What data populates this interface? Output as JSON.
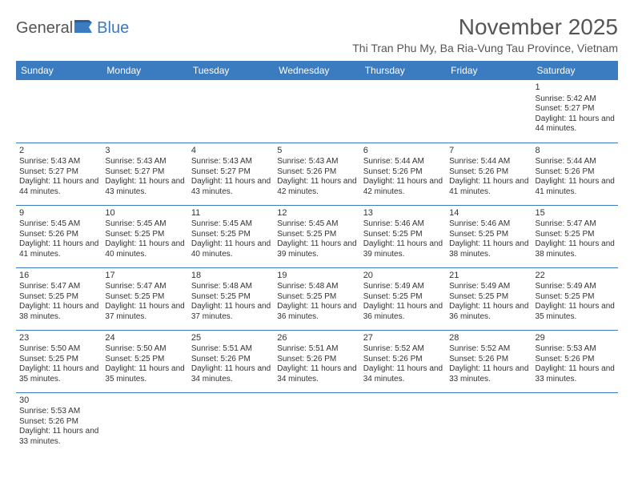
{
  "logo": {
    "general": "General",
    "blue": "Blue"
  },
  "header": {
    "month_title": "November 2025",
    "location": "Thi Tran Phu My, Ba Ria-Vung Tau Province, Vietnam"
  },
  "colors": {
    "header_bg": "#3b7bbf",
    "header_text": "#ffffff",
    "border": "#3b7bbf",
    "text": "#333333",
    "title_text": "#555555"
  },
  "weekdays": [
    "Sunday",
    "Monday",
    "Tuesday",
    "Wednesday",
    "Thursday",
    "Friday",
    "Saturday"
  ],
  "weeks": [
    [
      null,
      null,
      null,
      null,
      null,
      null,
      {
        "day": "1",
        "sunrise": "Sunrise: 5:42 AM",
        "sunset": "Sunset: 5:27 PM",
        "daylight": "Daylight: 11 hours and 44 minutes."
      }
    ],
    [
      {
        "day": "2",
        "sunrise": "Sunrise: 5:43 AM",
        "sunset": "Sunset: 5:27 PM",
        "daylight": "Daylight: 11 hours and 44 minutes."
      },
      {
        "day": "3",
        "sunrise": "Sunrise: 5:43 AM",
        "sunset": "Sunset: 5:27 PM",
        "daylight": "Daylight: 11 hours and 43 minutes."
      },
      {
        "day": "4",
        "sunrise": "Sunrise: 5:43 AM",
        "sunset": "Sunset: 5:27 PM",
        "daylight": "Daylight: 11 hours and 43 minutes."
      },
      {
        "day": "5",
        "sunrise": "Sunrise: 5:43 AM",
        "sunset": "Sunset: 5:26 PM",
        "daylight": "Daylight: 11 hours and 42 minutes."
      },
      {
        "day": "6",
        "sunrise": "Sunrise: 5:44 AM",
        "sunset": "Sunset: 5:26 PM",
        "daylight": "Daylight: 11 hours and 42 minutes."
      },
      {
        "day": "7",
        "sunrise": "Sunrise: 5:44 AM",
        "sunset": "Sunset: 5:26 PM",
        "daylight": "Daylight: 11 hours and 41 minutes."
      },
      {
        "day": "8",
        "sunrise": "Sunrise: 5:44 AM",
        "sunset": "Sunset: 5:26 PM",
        "daylight": "Daylight: 11 hours and 41 minutes."
      }
    ],
    [
      {
        "day": "9",
        "sunrise": "Sunrise: 5:45 AM",
        "sunset": "Sunset: 5:26 PM",
        "daylight": "Daylight: 11 hours and 41 minutes."
      },
      {
        "day": "10",
        "sunrise": "Sunrise: 5:45 AM",
        "sunset": "Sunset: 5:25 PM",
        "daylight": "Daylight: 11 hours and 40 minutes."
      },
      {
        "day": "11",
        "sunrise": "Sunrise: 5:45 AM",
        "sunset": "Sunset: 5:25 PM",
        "daylight": "Daylight: 11 hours and 40 minutes."
      },
      {
        "day": "12",
        "sunrise": "Sunrise: 5:45 AM",
        "sunset": "Sunset: 5:25 PM",
        "daylight": "Daylight: 11 hours and 39 minutes."
      },
      {
        "day": "13",
        "sunrise": "Sunrise: 5:46 AM",
        "sunset": "Sunset: 5:25 PM",
        "daylight": "Daylight: 11 hours and 39 minutes."
      },
      {
        "day": "14",
        "sunrise": "Sunrise: 5:46 AM",
        "sunset": "Sunset: 5:25 PM",
        "daylight": "Daylight: 11 hours and 38 minutes."
      },
      {
        "day": "15",
        "sunrise": "Sunrise: 5:47 AM",
        "sunset": "Sunset: 5:25 PM",
        "daylight": "Daylight: 11 hours and 38 minutes."
      }
    ],
    [
      {
        "day": "16",
        "sunrise": "Sunrise: 5:47 AM",
        "sunset": "Sunset: 5:25 PM",
        "daylight": "Daylight: 11 hours and 38 minutes."
      },
      {
        "day": "17",
        "sunrise": "Sunrise: 5:47 AM",
        "sunset": "Sunset: 5:25 PM",
        "daylight": "Daylight: 11 hours and 37 minutes."
      },
      {
        "day": "18",
        "sunrise": "Sunrise: 5:48 AM",
        "sunset": "Sunset: 5:25 PM",
        "daylight": "Daylight: 11 hours and 37 minutes."
      },
      {
        "day": "19",
        "sunrise": "Sunrise: 5:48 AM",
        "sunset": "Sunset: 5:25 PM",
        "daylight": "Daylight: 11 hours and 36 minutes."
      },
      {
        "day": "20",
        "sunrise": "Sunrise: 5:49 AM",
        "sunset": "Sunset: 5:25 PM",
        "daylight": "Daylight: 11 hours and 36 minutes."
      },
      {
        "day": "21",
        "sunrise": "Sunrise: 5:49 AM",
        "sunset": "Sunset: 5:25 PM",
        "daylight": "Daylight: 11 hours and 36 minutes."
      },
      {
        "day": "22",
        "sunrise": "Sunrise: 5:49 AM",
        "sunset": "Sunset: 5:25 PM",
        "daylight": "Daylight: 11 hours and 35 minutes."
      }
    ],
    [
      {
        "day": "23",
        "sunrise": "Sunrise: 5:50 AM",
        "sunset": "Sunset: 5:25 PM",
        "daylight": "Daylight: 11 hours and 35 minutes."
      },
      {
        "day": "24",
        "sunrise": "Sunrise: 5:50 AM",
        "sunset": "Sunset: 5:25 PM",
        "daylight": "Daylight: 11 hours and 35 minutes."
      },
      {
        "day": "25",
        "sunrise": "Sunrise: 5:51 AM",
        "sunset": "Sunset: 5:26 PM",
        "daylight": "Daylight: 11 hours and 34 minutes."
      },
      {
        "day": "26",
        "sunrise": "Sunrise: 5:51 AM",
        "sunset": "Sunset: 5:26 PM",
        "daylight": "Daylight: 11 hours and 34 minutes."
      },
      {
        "day": "27",
        "sunrise": "Sunrise: 5:52 AM",
        "sunset": "Sunset: 5:26 PM",
        "daylight": "Daylight: 11 hours and 34 minutes."
      },
      {
        "day": "28",
        "sunrise": "Sunrise: 5:52 AM",
        "sunset": "Sunset: 5:26 PM",
        "daylight": "Daylight: 11 hours and 33 minutes."
      },
      {
        "day": "29",
        "sunrise": "Sunrise: 5:53 AM",
        "sunset": "Sunset: 5:26 PM",
        "daylight": "Daylight: 11 hours and 33 minutes."
      }
    ],
    [
      {
        "day": "30",
        "sunrise": "Sunrise: 5:53 AM",
        "sunset": "Sunset: 5:26 PM",
        "daylight": "Daylight: 11 hours and 33 minutes."
      },
      null,
      null,
      null,
      null,
      null,
      null
    ]
  ]
}
